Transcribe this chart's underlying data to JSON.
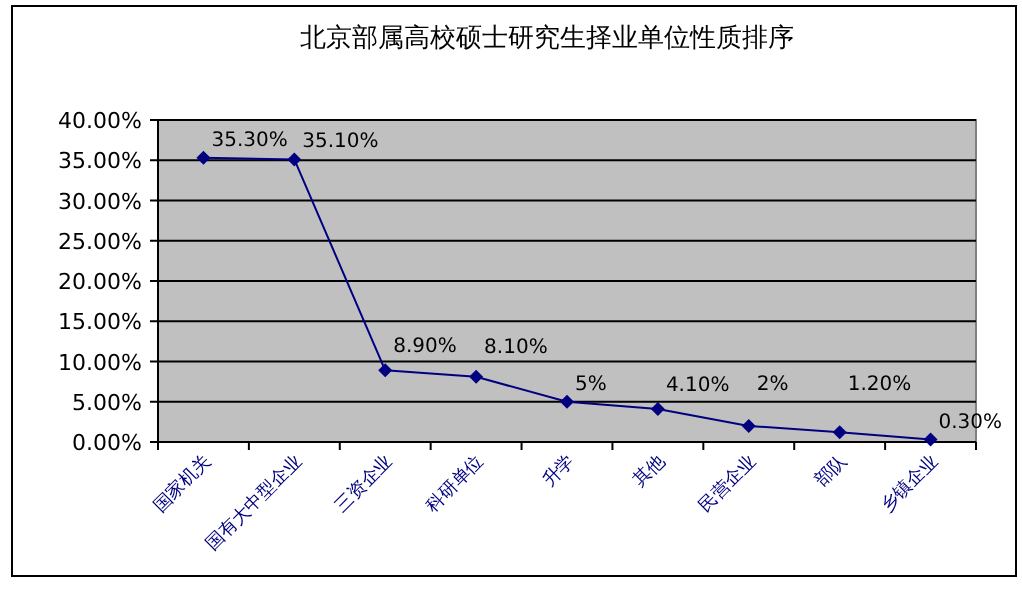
{
  "chart_data": {
    "type": "line",
    "title": "北京部属高校硕士研究生择业单位性质排序",
    "categories": [
      "国家机关",
      "国有大中型企业",
      "三资企业",
      "科研单位",
      "升学",
      "其他",
      "民营企业",
      "部队",
      "乡镇企业"
    ],
    "series": [
      {
        "color": "#000080",
        "values": [
          35.3,
          35.1,
          8.9,
          8.1,
          5,
          4.1,
          2,
          1.2,
          0.3
        ],
        "value_labels": [
          "35.30%",
          "35.10%",
          "8.90%",
          "8.10%",
          "5%",
          "4.10%",
          "2%",
          "1.20%",
          "0.30%"
        ]
      }
    ],
    "ylim": [
      0,
      40
    ],
    "yticks": [
      {
        "value": 0,
        "label": "0.00%"
      },
      {
        "value": 5,
        "label": "5.00%"
      },
      {
        "value": 10,
        "label": "10.00%"
      },
      {
        "value": 15,
        "label": "15.00%"
      },
      {
        "value": 20,
        "label": "20.00%"
      },
      {
        "value": 25,
        "label": "25.00%"
      },
      {
        "value": 30,
        "label": "30.00%"
      },
      {
        "value": 35,
        "label": "35.00%"
      },
      {
        "value": 40,
        "label": "40.00%"
      }
    ],
    "grid": "y",
    "marker": "diamond"
  }
}
